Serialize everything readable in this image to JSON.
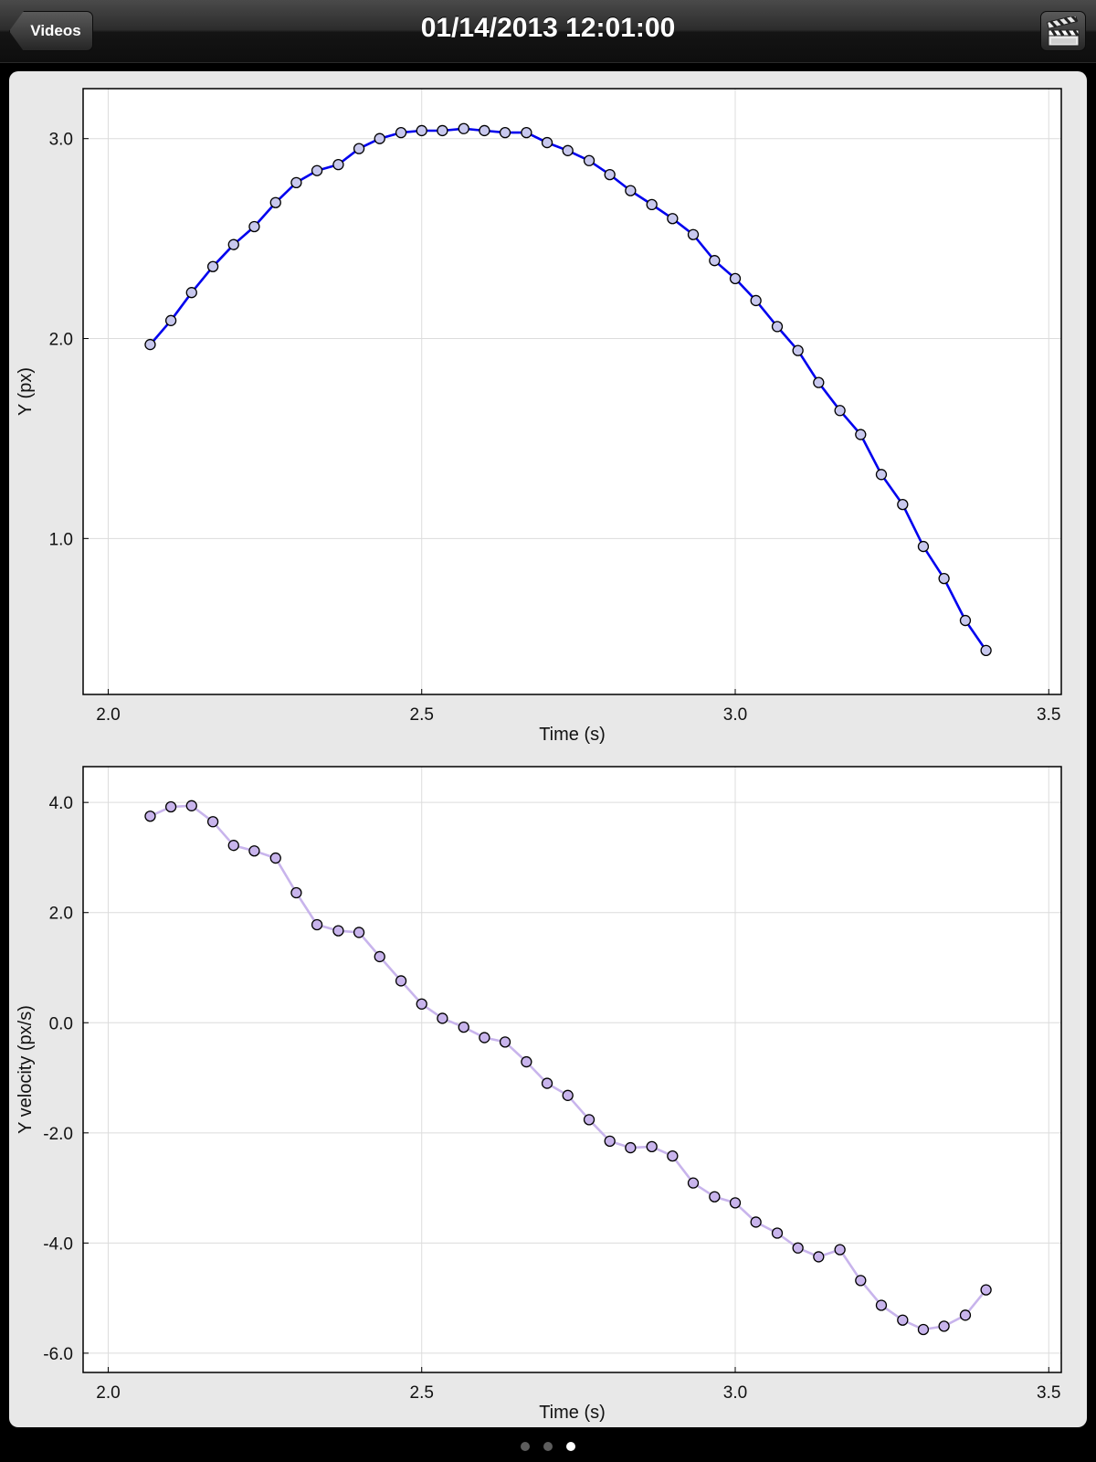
{
  "navbar": {
    "title": "01/14/2013 12:01:00",
    "back_label": "Videos",
    "action_icon": "clapperboard-icon"
  },
  "pager": {
    "pages": 3,
    "current": 3
  },
  "chart_data": [
    {
      "type": "line",
      "title": "",
      "xlabel": "Time (s)",
      "ylabel": "Y (px)",
      "xlim": [
        1.96,
        3.52
      ],
      "ylim": [
        0.22,
        3.25
      ],
      "xticks": [
        2.0,
        2.5,
        3.0,
        3.5
      ],
      "xtick_labels": [
        "2.0",
        "2.5",
        "3.0",
        "3.5"
      ],
      "yticks": [
        1.0,
        2.0,
        3.0
      ],
      "ytick_labels": [
        "1.0",
        "2.0",
        "3.0"
      ],
      "grid": true,
      "series": [
        {
          "line_color": "#0000ee",
          "marker_color": "#c8c8ee",
          "x": [
            2.067,
            2.1,
            2.133,
            2.167,
            2.2,
            2.233,
            2.267,
            2.3,
            2.333,
            2.367,
            2.4,
            2.433,
            2.467,
            2.5,
            2.533,
            2.567,
            2.6,
            2.633,
            2.667,
            2.7,
            2.733,
            2.767,
            2.8,
            2.833,
            2.867,
            2.9,
            2.933,
            2.967,
            3.0,
            3.033,
            3.067,
            3.1,
            3.133,
            3.167,
            3.2,
            3.233,
            3.267,
            3.3,
            3.333,
            3.367,
            3.4
          ],
          "y": [
            1.97,
            2.09,
            2.23,
            2.36,
            2.47,
            2.56,
            2.68,
            2.78,
            2.84,
            2.87,
            2.95,
            3.0,
            3.03,
            3.04,
            3.04,
            3.05,
            3.04,
            3.03,
            3.03,
            2.98,
            2.94,
            2.89,
            2.82,
            2.74,
            2.67,
            2.6,
            2.52,
            2.39,
            2.3,
            2.19,
            2.06,
            1.94,
            1.78,
            1.64,
            1.52,
            1.32,
            1.17,
            0.96,
            0.8,
            0.59,
            0.44
          ]
        }
      ]
    },
    {
      "type": "line",
      "title": "",
      "xlabel": "Time (s)",
      "ylabel": "Y velocity (px/s)",
      "xlim": [
        1.96,
        3.52
      ],
      "ylim": [
        -6.35,
        4.65
      ],
      "xticks": [
        2.0,
        2.5,
        3.0,
        3.5
      ],
      "xtick_labels": [
        "2.0",
        "2.5",
        "3.0",
        "3.5"
      ],
      "yticks": [
        -6.0,
        -4.0,
        -2.0,
        0.0,
        2.0,
        4.0
      ],
      "ytick_labels": [
        "-6.0",
        "-4.0",
        "-2.0",
        "0.0",
        "2.0",
        "4.0"
      ],
      "grid": true,
      "series": [
        {
          "line_color": "#c8b4ec",
          "marker_color": "#c8b4ec",
          "x": [
            2.067,
            2.1,
            2.133,
            2.167,
            2.2,
            2.233,
            2.267,
            2.3,
            2.333,
            2.367,
            2.4,
            2.433,
            2.467,
            2.5,
            2.533,
            2.567,
            2.6,
            2.633,
            2.667,
            2.7,
            2.733,
            2.767,
            2.8,
            2.833,
            2.867,
            2.9,
            2.933,
            2.967,
            3.0,
            3.033,
            3.067,
            3.1,
            3.133,
            3.167,
            3.2,
            3.233,
            3.267,
            3.3,
            3.333,
            3.367,
            3.4
          ],
          "y": [
            3.75,
            3.92,
            3.94,
            3.65,
            3.22,
            3.12,
            2.99,
            2.36,
            1.78,
            1.67,
            1.64,
            1.2,
            0.76,
            0.34,
            0.08,
            -0.08,
            -0.27,
            -0.35,
            -0.71,
            -1.1,
            -1.32,
            -1.76,
            -2.15,
            -2.27,
            -2.25,
            -2.42,
            -2.91,
            -3.16,
            -3.27,
            -3.62,
            -3.82,
            -4.09,
            -4.25,
            -4.12,
            -4.68,
            -5.13,
            -5.4,
            -5.57,
            -5.51,
            -5.31,
            -4.85
          ]
        }
      ]
    }
  ]
}
